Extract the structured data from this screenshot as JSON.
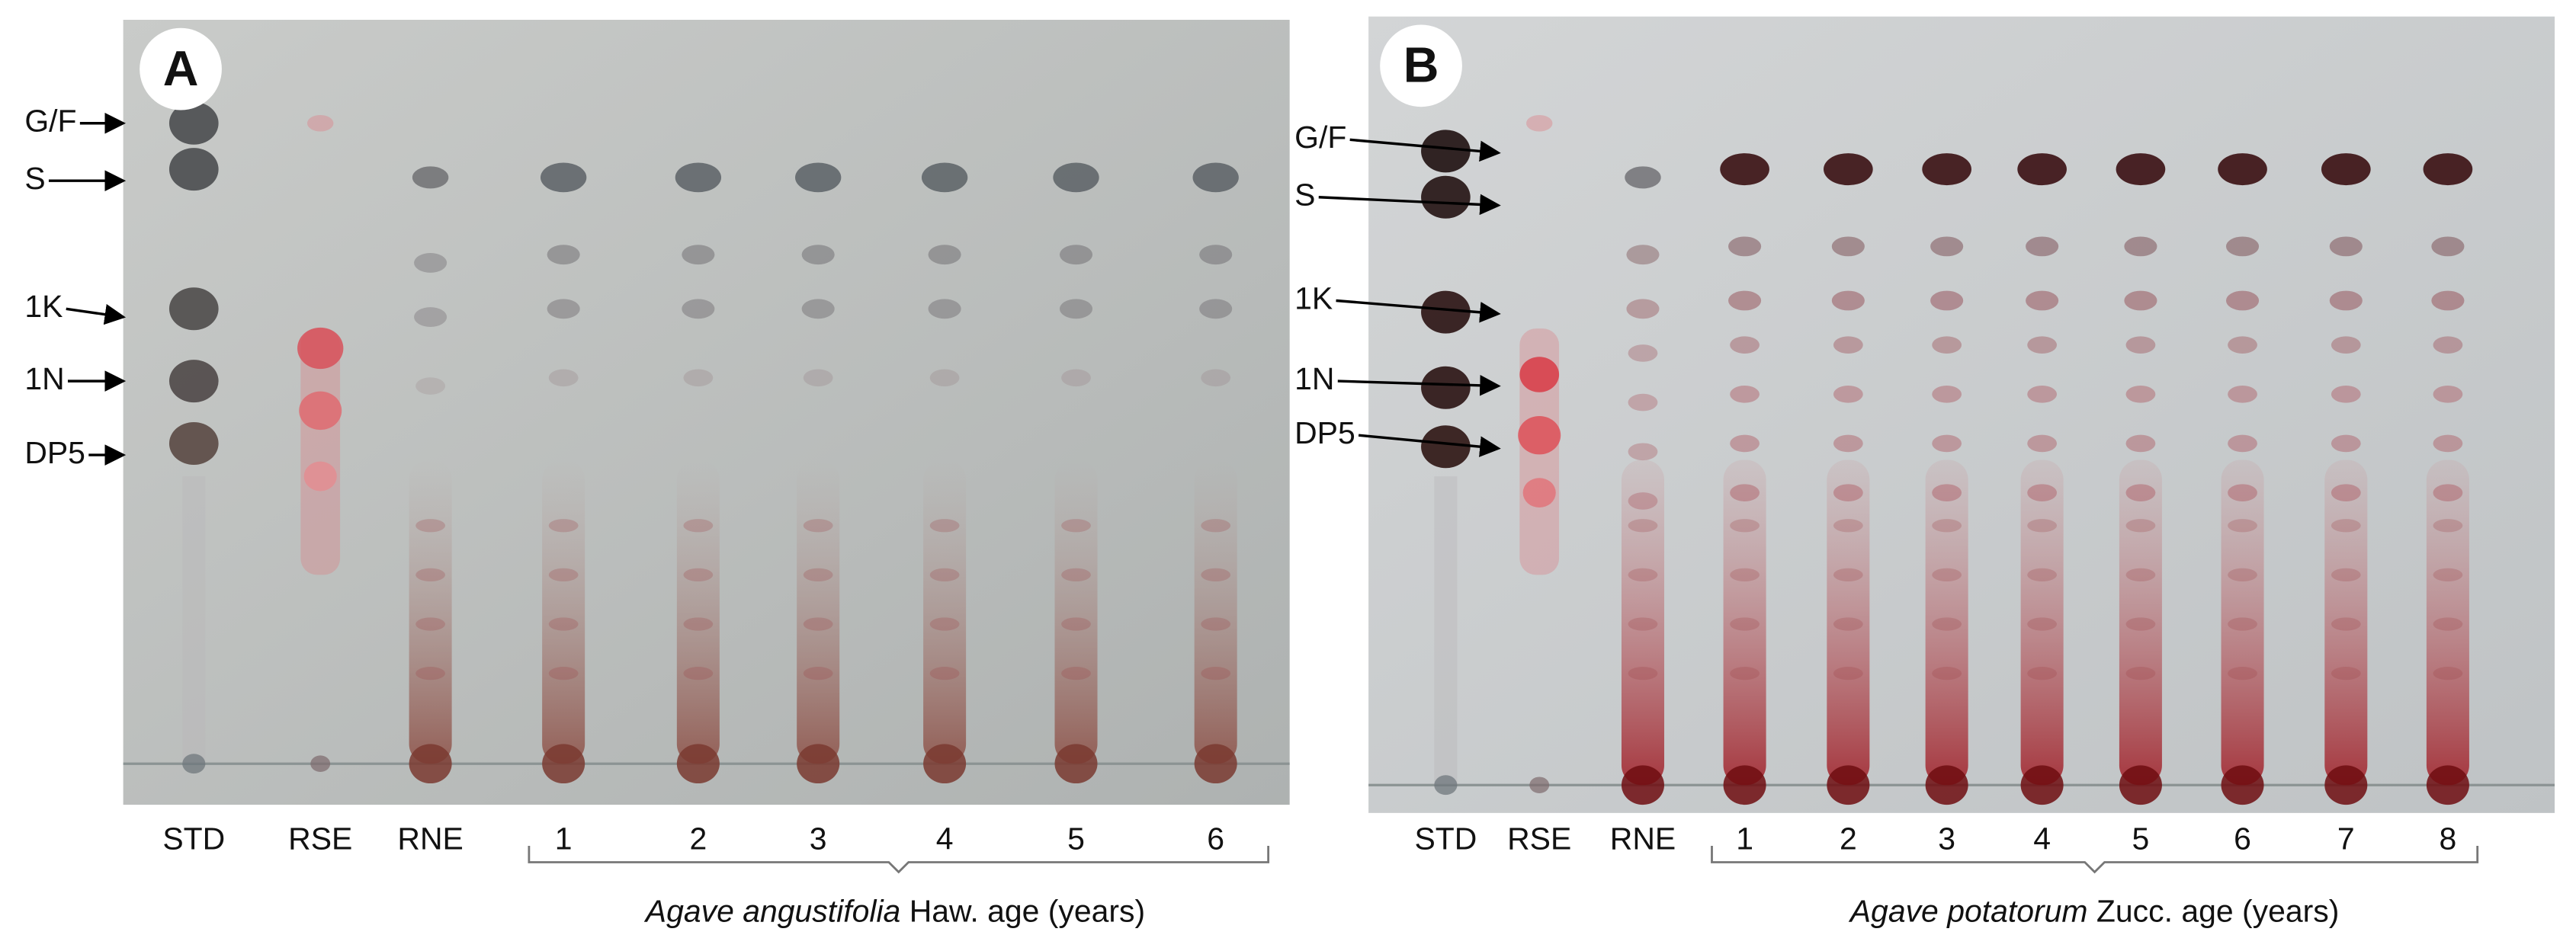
{
  "panels": [
    {
      "letter": "A",
      "standards": [
        "G/F",
        "S",
        "1K",
        "1N",
        "DP5"
      ],
      "lanes": [
        "STD",
        "RSE",
        "RNE",
        "1",
        "2",
        "3",
        "4",
        "5",
        "6"
      ],
      "caption": {
        "species": "Agave angustifolia",
        "rest": "Haw. age (years)"
      }
    },
    {
      "letter": "B",
      "standards": [
        "G/F",
        "S",
        "1K",
        "1N",
        "DP5"
      ],
      "lanes": [
        "STD",
        "RSE",
        "RNE",
        "1",
        "2",
        "3",
        "4",
        "5",
        "6",
        "7",
        "8"
      ],
      "caption": {
        "species": "Agave potatorum",
        "rest": "Zucc. age (years)"
      }
    }
  ]
}
